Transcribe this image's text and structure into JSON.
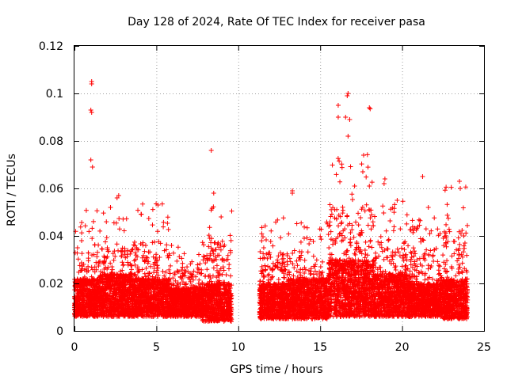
{
  "chart_data": {
    "type": "scatter",
    "title": "Day 128 of 2024, Rate Of TEC Index for receiver pasa",
    "xlabel": "GPS time / hours",
    "ylabel": "ROTI / TECUs",
    "xlim": [
      0,
      25
    ],
    "ylim": [
      0,
      0.12
    ],
    "xticks": [
      0,
      5,
      10,
      15,
      20,
      25
    ],
    "xtick_labels": [
      "0",
      "5",
      "10",
      "15",
      "20",
      "25"
    ],
    "yticks": [
      0,
      0.02,
      0.04,
      0.06,
      0.08,
      0.1,
      0.12
    ],
    "ytick_labels": [
      "0",
      "0.02",
      "0.04",
      "0.06",
      "0.08",
      "0.1",
      "0.12"
    ],
    "grid": true,
    "marker": "+",
    "color": "#ff0000",
    "data_gap_hours": [
      9.6,
      11.3
    ],
    "series": [
      {
        "name": "ROTI",
        "notable_points": [
          {
            "x": 1.05,
            "y": 0.105
          },
          {
            "x": 1.05,
            "y": 0.104
          },
          {
            "x": 1.0,
            "y": 0.093
          },
          {
            "x": 1.05,
            "y": 0.092
          },
          {
            "x": 1.0,
            "y": 0.072
          },
          {
            "x": 1.1,
            "y": 0.069
          },
          {
            "x": 2.2,
            "y": 0.052
          },
          {
            "x": 2.7,
            "y": 0.057
          },
          {
            "x": 2.6,
            "y": 0.056
          },
          {
            "x": 5.1,
            "y": 0.053
          },
          {
            "x": 8.35,
            "y": 0.076
          },
          {
            "x": 8.5,
            "y": 0.058
          },
          {
            "x": 13.3,
            "y": 0.059
          },
          {
            "x": 13.3,
            "y": 0.058
          },
          {
            "x": 16.1,
            "y": 0.095
          },
          {
            "x": 16.1,
            "y": 0.09
          },
          {
            "x": 16.7,
            "y": 0.1
          },
          {
            "x": 16.65,
            "y": 0.099
          },
          {
            "x": 16.8,
            "y": 0.089
          },
          {
            "x": 16.7,
            "y": 0.082
          },
          {
            "x": 16.55,
            "y": 0.09
          },
          {
            "x": 17.1,
            "y": 0.061
          },
          {
            "x": 17.65,
            "y": 0.074
          },
          {
            "x": 17.6,
            "y": 0.067
          },
          {
            "x": 18.0,
            "y": 0.094
          },
          {
            "x": 18.05,
            "y": 0.0935
          },
          {
            "x": 18.0,
            "y": 0.061
          },
          {
            "x": 18.95,
            "y": 0.064
          },
          {
            "x": 18.9,
            "y": 0.062
          },
          {
            "x": 19.7,
            "y": 0.055
          },
          {
            "x": 21.25,
            "y": 0.065
          },
          {
            "x": 21.6,
            "y": 0.052
          },
          {
            "x": 23.5,
            "y": 0.063
          },
          {
            "x": 23.55,
            "y": 0.06
          }
        ],
        "segments": [
          {
            "x": [
              0.0,
              1.5
            ],
            "base": [
              0.006,
              0.022
            ],
            "upper": 0.052
          },
          {
            "x": [
              1.5,
              3.5
            ],
            "base": [
              0.006,
              0.024
            ],
            "upper": 0.05
          },
          {
            "x": [
              3.5,
              5.8
            ],
            "base": [
              0.006,
              0.022
            ],
            "upper": 0.054
          },
          {
            "x": [
              5.8,
              7.8
            ],
            "base": [
              0.006,
              0.018
            ],
            "upper": 0.036
          },
          {
            "x": [
              7.8,
              9.6
            ],
            "base": [
              0.004,
              0.02
            ],
            "upper": 0.058
          },
          {
            "x": [
              11.3,
              13.0
            ],
            "base": [
              0.005,
              0.02
            ],
            "upper": 0.048
          },
          {
            "x": [
              13.0,
              15.5
            ],
            "base": [
              0.005,
              0.022
            ],
            "upper": 0.046
          },
          {
            "x": [
              15.5,
              18.3
            ],
            "base": [
              0.006,
              0.03
            ],
            "upper": 0.075
          },
          {
            "x": [
              18.3,
              20.5
            ],
            "base": [
              0.006,
              0.024
            ],
            "upper": 0.055
          },
          {
            "x": [
              20.5,
              22.5
            ],
            "base": [
              0.006,
              0.02
            ],
            "upper": 0.05
          },
          {
            "x": [
              22.5,
              24.0
            ],
            "base": [
              0.005,
              0.022
            ],
            "upper": 0.062
          }
        ]
      }
    ]
  }
}
